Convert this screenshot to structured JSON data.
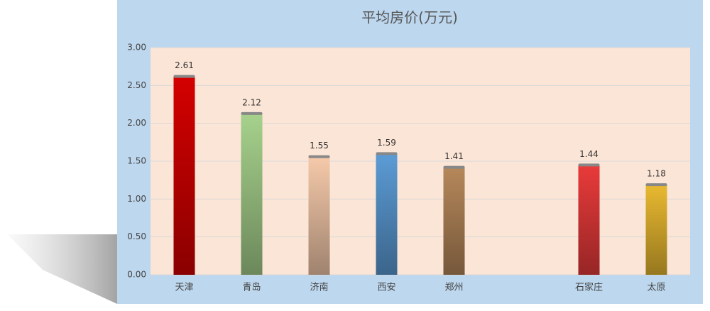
{
  "chart_data": {
    "type": "bar",
    "title": "平均房价(万元)",
    "categories": [
      "天津",
      "青岛",
      "济南",
      "西安",
      "郑州",
      null,
      "石家庄",
      "太原"
    ],
    "values": [
      2.61,
      2.12,
      1.55,
      1.59,
      1.41,
      null,
      1.44,
      1.18
    ],
    "colors": [
      "#d40000",
      "#a6d18c",
      "#f5c9aa",
      "#5b9bd5",
      "#b5875a",
      null,
      "#e83a3a",
      "#e8b830"
    ],
    "ylim": [
      0,
      3
    ],
    "yticks": [
      {
        "value": 0,
        "label": "0.00"
      },
      {
        "value": 0.5,
        "label": "0.50"
      },
      {
        "value": 1,
        "label": "1.00"
      },
      {
        "value": 1.5,
        "label": "1.50"
      },
      {
        "value": 2,
        "label": "2.00"
      },
      {
        "value": 2.5,
        "label": "2.50"
      },
      {
        "value": 3,
        "label": "3.00"
      }
    ],
    "grid": true
  }
}
